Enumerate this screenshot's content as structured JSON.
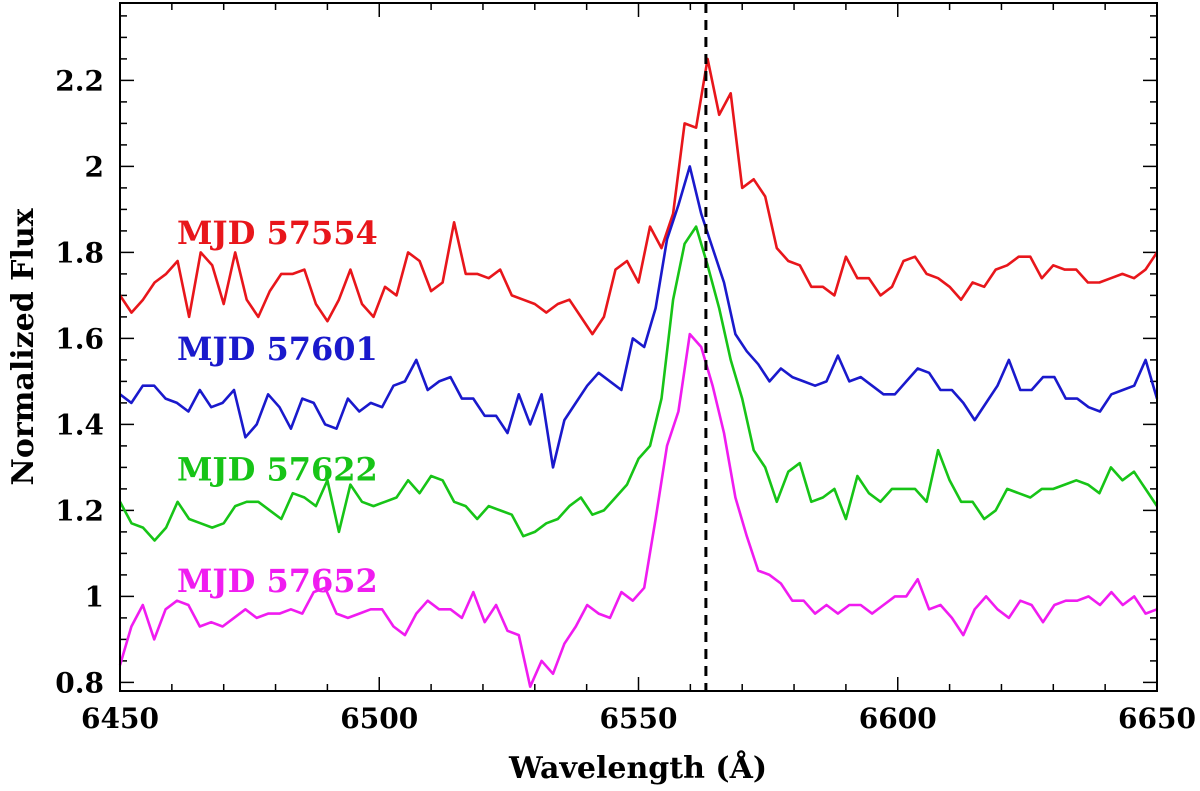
{
  "chart_data": {
    "type": "line",
    "xlabel": "Wavelength (Å)",
    "ylabel": "Normalized Flux",
    "xlim": [
      6450,
      6650
    ],
    "ylim": [
      0.78,
      2.38
    ],
    "xticks": [
      6450,
      6500,
      6550,
      6600,
      6650
    ],
    "xtick_labels": [
      "6450",
      "6500",
      "6550",
      "6600",
      "6650"
    ],
    "yticks": [
      0.8,
      1.0,
      1.2,
      1.4,
      1.6,
      1.8,
      2.0,
      2.2
    ],
    "ytick_labels": [
      "0.8",
      "1",
      "1.2",
      "1.4",
      "1.6",
      "1.8",
      "2",
      "2.2"
    ],
    "reference_line": {
      "x": 6563,
      "style": "dashed",
      "color": "#000000"
    },
    "series": [
      {
        "name": "MJD 57554",
        "color": "#e8161b",
        "label_y": 1.82,
        "values": [
          1.7,
          1.66,
          1.69,
          1.73,
          1.75,
          1.78,
          1.65,
          1.8,
          1.77,
          1.68,
          1.8,
          1.69,
          1.65,
          1.71,
          1.75,
          1.75,
          1.76,
          1.68,
          1.64,
          1.69,
          1.76,
          1.68,
          1.65,
          1.72,
          1.7,
          1.8,
          1.78,
          1.71,
          1.73,
          1.87,
          1.75,
          1.75,
          1.74,
          1.76,
          1.7,
          1.69,
          1.68,
          1.66,
          1.68,
          1.69,
          1.65,
          1.61,
          1.65,
          1.76,
          1.78,
          1.73,
          1.86,
          1.81,
          1.89,
          2.1,
          2.09,
          2.25,
          2.12,
          2.17,
          1.95,
          1.97,
          1.93,
          1.81,
          1.78,
          1.77,
          1.72,
          1.72,
          1.7,
          1.79,
          1.74,
          1.74,
          1.7,
          1.72,
          1.78,
          1.79,
          1.75,
          1.74,
          1.72,
          1.69,
          1.73,
          1.72,
          1.76,
          1.77,
          1.79,
          1.79,
          1.74,
          1.77,
          1.76,
          1.76,
          1.73,
          1.73,
          1.74,
          1.75,
          1.74,
          1.76,
          1.8
        ]
      },
      {
        "name": "MJD 57601",
        "color": "#1a19cc",
        "label_y": 1.55,
        "values": [
          1.47,
          1.45,
          1.49,
          1.49,
          1.46,
          1.45,
          1.43,
          1.48,
          1.44,
          1.45,
          1.48,
          1.37,
          1.4,
          1.47,
          1.44,
          1.39,
          1.46,
          1.45,
          1.4,
          1.39,
          1.46,
          1.43,
          1.45,
          1.44,
          1.49,
          1.5,
          1.55,
          1.48,
          1.5,
          1.51,
          1.46,
          1.46,
          1.42,
          1.42,
          1.38,
          1.47,
          1.4,
          1.47,
          1.3,
          1.41,
          1.45,
          1.49,
          1.52,
          1.5,
          1.48,
          1.6,
          1.58,
          1.67,
          1.83,
          1.91,
          2.0,
          1.89,
          1.81,
          1.73,
          1.61,
          1.57,
          1.54,
          1.5,
          1.53,
          1.51,
          1.5,
          1.49,
          1.5,
          1.56,
          1.5,
          1.51,
          1.49,
          1.47,
          1.47,
          1.5,
          1.53,
          1.52,
          1.48,
          1.48,
          1.45,
          1.41,
          1.45,
          1.49,
          1.55,
          1.48,
          1.48,
          1.51,
          1.51,
          1.46,
          1.46,
          1.44,
          1.43,
          1.47,
          1.48,
          1.49,
          1.55,
          1.46
        ]
      },
      {
        "name": "MJD 57622",
        "color": "#17c417",
        "label_y": 1.27,
        "values": [
          1.22,
          1.17,
          1.16,
          1.13,
          1.16,
          1.22,
          1.18,
          1.17,
          1.16,
          1.17,
          1.21,
          1.22,
          1.22,
          1.2,
          1.18,
          1.24,
          1.23,
          1.21,
          1.27,
          1.15,
          1.26,
          1.22,
          1.21,
          1.22,
          1.23,
          1.27,
          1.24,
          1.28,
          1.27,
          1.22,
          1.21,
          1.18,
          1.21,
          1.2,
          1.19,
          1.14,
          1.15,
          1.17,
          1.18,
          1.21,
          1.23,
          1.19,
          1.2,
          1.23,
          1.26,
          1.32,
          1.35,
          1.46,
          1.69,
          1.82,
          1.86,
          1.77,
          1.67,
          1.55,
          1.46,
          1.34,
          1.3,
          1.22,
          1.29,
          1.31,
          1.22,
          1.23,
          1.25,
          1.18,
          1.28,
          1.24,
          1.22,
          1.25,
          1.25,
          1.25,
          1.22,
          1.34,
          1.27,
          1.22,
          1.22,
          1.18,
          1.2,
          1.25,
          1.24,
          1.23,
          1.25,
          1.25,
          1.26,
          1.27,
          1.26,
          1.24,
          1.3,
          1.27,
          1.29,
          1.25,
          1.21
        ]
      },
      {
        "name": "MJD 57652",
        "color": "#f01cf0",
        "label_y": 1.01,
        "values": [
          0.84,
          0.93,
          0.98,
          0.9,
          0.97,
          0.99,
          0.98,
          0.93,
          0.94,
          0.93,
          0.95,
          0.97,
          0.95,
          0.96,
          0.96,
          0.97,
          0.96,
          1.01,
          1.02,
          0.96,
          0.95,
          0.96,
          0.97,
          0.97,
          0.93,
          0.91,
          0.96,
          0.99,
          0.97,
          0.97,
          0.95,
          1.01,
          0.94,
          0.98,
          0.92,
          0.91,
          0.79,
          0.85,
          0.82,
          0.89,
          0.93,
          0.98,
          0.96,
          0.95,
          1.01,
          0.99,
          1.02,
          1.18,
          1.35,
          1.43,
          1.61,
          1.58,
          1.49,
          1.38,
          1.23,
          1.14,
          1.06,
          1.05,
          1.03,
          0.99,
          0.99,
          0.96,
          0.98,
          0.96,
          0.98,
          0.98,
          0.96,
          0.98,
          1.0,
          1.0,
          1.04,
          0.97,
          0.98,
          0.95,
          0.91,
          0.97,
          1.0,
          0.97,
          0.95,
          0.99,
          0.98,
          0.94,
          0.98,
          0.99,
          0.99,
          1.0,
          0.98,
          1.01,
          0.98,
          1.0,
          0.96,
          0.97
        ]
      }
    ]
  }
}
